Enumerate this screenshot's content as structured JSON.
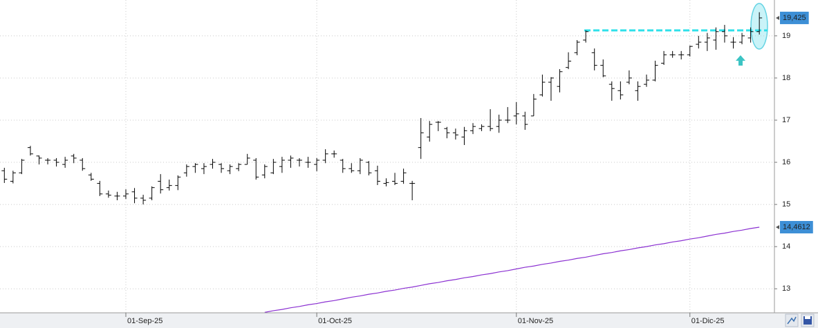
{
  "chart_data": {
    "type": "ohlc",
    "categories": [
      null,
      null,
      null,
      null,
      null,
      null,
      null,
      null,
      null,
      null,
      null,
      null,
      null,
      null,
      "01-Sep-25",
      null,
      null,
      null,
      null,
      null,
      null,
      null,
      null,
      null,
      null,
      null,
      null,
      null,
      null,
      null,
      null,
      null,
      null,
      null,
      null,
      null,
      "01-Oct-25",
      null,
      null,
      null,
      null,
      null,
      null,
      null,
      null,
      null,
      null,
      null,
      null,
      null,
      null,
      null,
      null,
      null,
      null,
      null,
      null,
      null,
      null,
      "01-Nov-25",
      null,
      null,
      null,
      null,
      null,
      null,
      null,
      null,
      null,
      null,
      null,
      null,
      null,
      null,
      null,
      null,
      null,
      null,
      null,
      "01-Dic-25",
      null,
      null,
      null,
      null,
      null,
      null,
      null,
      null
    ],
    "series": [
      {
        "type": "ohlc",
        "color": "#000000",
        "open": [
          15.8,
          15.55,
          15.75,
          16.35,
          16.15,
          16.05,
          16.05,
          15.95,
          16.15,
          16.05,
          15.7,
          15.5,
          15.25,
          15.2,
          15.2,
          15.3,
          15.15,
          15.15,
          15.55,
          15.4,
          15.45,
          15.75,
          15.9,
          15.85,
          15.95,
          15.95,
          15.8,
          15.85,
          15.95,
          16.05,
          15.7,
          15.75,
          15.9,
          16.05,
          16.05,
          16.0,
          15.95,
          16.05,
          16.2,
          16.05,
          15.85,
          15.8,
          16.0,
          15.8,
          15.5,
          15.55,
          15.55,
          15.5,
          16.35,
          16.6,
          16.95,
          16.8,
          16.7,
          16.6,
          16.75,
          16.8,
          16.85,
          16.85,
          17.0,
          17.1,
          17.1,
          17.1,
          17.6,
          17.9,
          17.8,
          18.25,
          18.6,
          18.9,
          18.6,
          18.3,
          17.85,
          17.7,
          17.9,
          17.7,
          17.85,
          17.95,
          18.35,
          18.55,
          18.55,
          18.55,
          18.8,
          18.85,
          18.9,
          19.1,
          18.85,
          18.85,
          18.95,
          19.1
        ],
        "high": [
          15.87,
          15.8,
          16.08,
          16.39,
          16.16,
          16.1,
          16.1,
          16.13,
          16.2,
          16.1,
          15.75,
          15.56,
          15.33,
          15.3,
          15.36,
          15.39,
          15.23,
          15.43,
          15.72,
          15.59,
          15.69,
          15.95,
          15.98,
          15.98,
          16.08,
          15.98,
          15.95,
          15.98,
          16.2,
          16.1,
          15.95,
          16.08,
          16.13,
          16.16,
          16.1,
          16.13,
          16.1,
          16.31,
          16.28,
          16.08,
          15.98,
          16.1,
          16.03,
          15.92,
          15.62,
          15.75,
          15.85,
          15.56,
          17.05,
          16.98,
          16.98,
          16.84,
          16.8,
          16.84,
          16.93,
          16.9,
          17.26,
          17.13,
          17.31,
          17.43,
          17.2,
          17.62,
          18.08,
          18.02,
          18.21,
          18.61,
          18.9,
          19.13,
          18.7,
          18.44,
          17.92,
          17.92,
          18.18,
          17.92,
          18.08,
          18.41,
          18.64,
          18.64,
          18.64,
          18.77,
          19.0,
          19.07,
          19.2,
          19.26,
          18.97,
          19.07,
          19.2,
          19.56
        ],
        "low": [
          15.51,
          15.5,
          15.72,
          16.16,
          15.95,
          15.95,
          15.9,
          15.87,
          15.98,
          15.8,
          15.56,
          15.2,
          15.16,
          15.1,
          15.13,
          15.03,
          15.0,
          15.1,
          15.26,
          15.33,
          15.34,
          15.66,
          15.75,
          15.72,
          15.85,
          15.75,
          15.72,
          15.79,
          15.95,
          15.59,
          15.62,
          15.72,
          15.75,
          15.87,
          15.9,
          15.87,
          15.79,
          15.98,
          16.11,
          15.75,
          15.75,
          15.72,
          15.69,
          15.46,
          15.43,
          15.46,
          15.49,
          15.1,
          16.08,
          16.49,
          16.74,
          16.57,
          16.54,
          16.41,
          16.67,
          16.74,
          16.74,
          16.7,
          16.93,
          16.9,
          16.77,
          17.1,
          17.56,
          17.46,
          17.66,
          18.21,
          18.54,
          18.84,
          18.18,
          18.02,
          17.46,
          17.49,
          17.85,
          17.46,
          17.79,
          17.92,
          18.31,
          18.48,
          18.44,
          18.51,
          18.7,
          18.64,
          18.67,
          18.84,
          18.7,
          18.8,
          18.84,
          19.03
        ],
        "close": [
          15.6,
          15.75,
          16.05,
          16.2,
          16.1,
          16.05,
          16.0,
          16.05,
          16.1,
          15.85,
          15.6,
          15.25,
          15.22,
          15.2,
          15.25,
          15.15,
          15.1,
          15.4,
          15.35,
          15.45,
          15.65,
          15.9,
          15.95,
          15.9,
          16.0,
          15.85,
          15.9,
          15.95,
          16.1,
          15.65,
          15.9,
          16.0,
          16.05,
          16.1,
          16.05,
          16.0,
          16.05,
          16.2,
          16.2,
          15.85,
          15.8,
          16.05,
          15.75,
          15.55,
          15.52,
          15.5,
          15.75,
          15.5,
          16.7,
          16.9,
          16.95,
          16.7,
          16.65,
          16.75,
          16.85,
          16.85,
          16.8,
          17.0,
          17.0,
          17.15,
          16.9,
          17.5,
          17.9,
          18.0,
          18.15,
          18.4,
          18.85,
          19.1,
          18.3,
          18.05,
          17.75,
          17.6,
          18.0,
          17.8,
          17.95,
          18.3,
          18.55,
          18.55,
          18.55,
          18.75,
          18.85,
          18.95,
          19.1,
          19.0,
          18.85,
          19.0,
          19.1,
          19.425
        ],
        "value_labels": [
          null,
          null,
          null,
          null,
          null,
          null,
          null,
          null,
          null,
          null,
          null,
          null,
          null,
          null,
          null,
          null,
          null,
          null,
          null,
          null,
          null,
          null,
          null,
          null,
          null,
          null,
          null,
          null,
          null,
          null,
          null,
          null,
          null,
          null,
          null,
          null,
          null,
          null,
          null,
          null,
          null,
          null,
          null,
          null,
          null,
          null,
          null,
          null,
          null,
          null,
          null,
          null,
          null,
          null,
          null,
          null,
          null,
          null,
          null,
          null,
          null,
          null,
          null,
          null,
          null,
          null,
          null,
          null,
          null,
          null,
          null,
          null,
          null,
          null,
          null,
          null,
          null,
          null,
          null,
          null,
          null,
          null,
          null,
          null,
          null,
          null,
          null,
          "19,425"
        ],
        "label_color": "#3d8fd6"
      },
      {
        "type": "line",
        "color": "#8a2fd1",
        "values": [
          null,
          null,
          null,
          null,
          null,
          null,
          null,
          null,
          null,
          null,
          null,
          null,
          null,
          null,
          null,
          null,
          null,
          null,
          null,
          null,
          null,
          null,
          null,
          null,
          null,
          null,
          null,
          null,
          null,
          null,
          12.44,
          12.48,
          12.51,
          12.55,
          12.58,
          12.62,
          12.65,
          12.69,
          12.72,
          12.76,
          12.8,
          12.83,
          12.87,
          12.9,
          12.94,
          12.97,
          13.01,
          13.04,
          13.08,
          13.12,
          13.15,
          13.19,
          13.22,
          13.26,
          13.29,
          13.33,
          13.36,
          13.4,
          13.43,
          13.47,
          13.51,
          13.54,
          13.58,
          13.61,
          13.65,
          13.68,
          13.72,
          13.75,
          13.79,
          13.83,
          13.86,
          13.9,
          13.93,
          13.97,
          14.0,
          14.04,
          14.07,
          14.11,
          14.14,
          14.18,
          14.21,
          14.25,
          14.29,
          14.32,
          14.36,
          14.39,
          14.43,
          14.4612
        ],
        "value_labels": [
          null,
          null,
          null,
          null,
          null,
          null,
          null,
          null,
          null,
          null,
          null,
          null,
          null,
          null,
          null,
          null,
          null,
          null,
          null,
          null,
          null,
          null,
          null,
          null,
          null,
          null,
          null,
          null,
          null,
          null,
          null,
          null,
          null,
          null,
          null,
          null,
          null,
          null,
          null,
          null,
          null,
          null,
          null,
          null,
          null,
          null,
          null,
          null,
          null,
          null,
          null,
          null,
          null,
          null,
          null,
          null,
          null,
          null,
          null,
          null,
          null,
          null,
          null,
          null,
          null,
          null,
          null,
          null,
          null,
          null,
          null,
          null,
          null,
          null,
          null,
          null,
          null,
          null,
          null,
          null,
          null,
          null,
          null,
          null,
          null,
          null,
          null,
          "14,4612"
        ],
        "label_color": "#3d8fd6"
      }
    ],
    "hline": {
      "value": 19.13,
      "color": "#2ee0ea"
    },
    "ylim": [
      12.43,
      19.85
    ],
    "yticks": [
      13,
      14,
      15,
      16,
      17,
      18,
      19
    ],
    "grid": true
  }
}
